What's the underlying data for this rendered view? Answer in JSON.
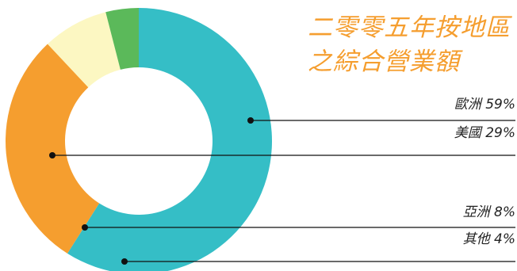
{
  "chart_data": {
    "type": "pie",
    "title_lines": [
      "二零零五年按地區",
      "之綜合營業額"
    ],
    "categories": [
      "歐洲",
      "美國",
      "亞洲",
      "其他"
    ],
    "values": [
      59,
      29,
      8,
      4
    ],
    "unit": "%",
    "labels": [
      "歐洲 59%",
      "美國 29%",
      "亞洲 8%",
      "其他 4%"
    ],
    "colors": [
      "#35bec6",
      "#f59e2f",
      "#fcf7c2",
      "#5bb95a"
    ],
    "donut": true,
    "legend": "right, leader lines"
  }
}
